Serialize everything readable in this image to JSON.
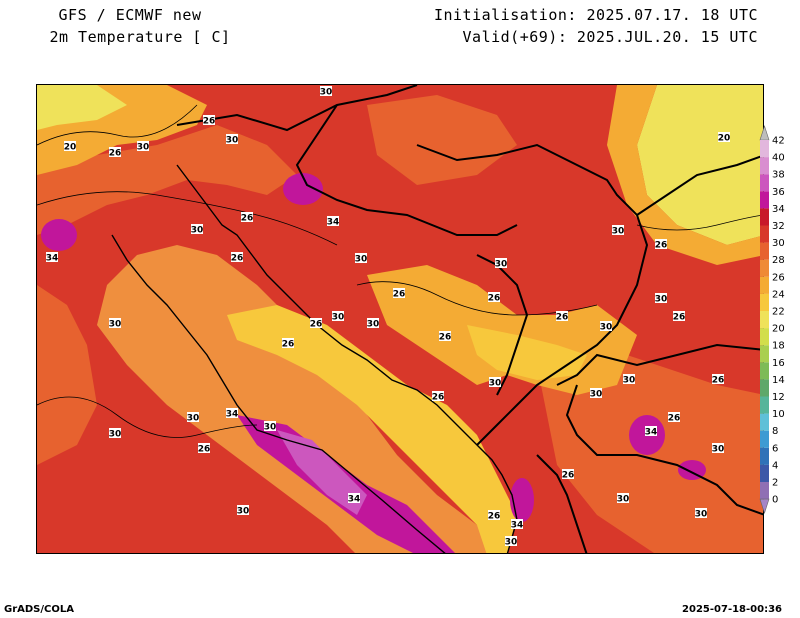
{
  "header": {
    "model": "GFS / ECMWF new",
    "field": "2m Temperature [ C]",
    "init": "Initialisation: 2025.07.17. 18 UTC",
    "valid": "Valid(+69): 2025.JUL.20. 15 UTC"
  },
  "footer": {
    "credit": "GrADS/COLA",
    "timestamp": "2025-07-18-00:36"
  },
  "colorbar": {
    "levels": [
      "0",
      "2",
      "4",
      "6",
      "8",
      "10",
      "12",
      "14",
      "16",
      "18",
      "20",
      "22",
      "24",
      "26",
      "28",
      "30",
      "32",
      "34",
      "36",
      "38",
      "40",
      "42"
    ],
    "colors": [
      "#8f6fb4",
      "#3c58a8",
      "#2f72b8",
      "#3d9bd3",
      "#5fc0d8",
      "#56b59a",
      "#5ea86a",
      "#7dbb56",
      "#a9cf4f",
      "#d2de4b",
      "#efe25a",
      "#f7c83c",
      "#f4ab34",
      "#ef8a36",
      "#e7622f",
      "#d8382a",
      "#c8192a",
      "#c1169b",
      "#cc57be",
      "#d98ed0",
      "#e2b7dd"
    ],
    "low_arrow_color": "#a585c7",
    "high_arrow_color": "#bdbdbd"
  },
  "map": {
    "sea_color": "#ef8f3e",
    "contour_labels": [
      {
        "text": "30",
        "pos": "325,90"
      },
      {
        "text": "26",
        "pos": "208,119"
      },
      {
        "text": "30",
        "pos": "231,138"
      },
      {
        "text": "20",
        "pos": "69,145"
      },
      {
        "text": "26",
        "pos": "114,151"
      },
      {
        "text": "30",
        "pos": "142,145"
      },
      {
        "text": "20",
        "pos": "723,136"
      },
      {
        "text": "26",
        "pos": "246,216"
      },
      {
        "text": "30",
        "pos": "196,228"
      },
      {
        "text": "26",
        "pos": "236,256"
      },
      {
        "text": "34",
        "pos": "332,220"
      },
      {
        "text": "30",
        "pos": "360,257"
      },
      {
        "text": "30",
        "pos": "500,262"
      },
      {
        "text": "30",
        "pos": "617,229"
      },
      {
        "text": "26",
        "pos": "660,243"
      },
      {
        "text": "34",
        "pos": "51,256"
      },
      {
        "text": "26",
        "pos": "398,292"
      },
      {
        "text": "26",
        "pos": "493,296"
      },
      {
        "text": "30",
        "pos": "660,297"
      },
      {
        "text": "30",
        "pos": "114,322"
      },
      {
        "text": "26",
        "pos": "315,322"
      },
      {
        "text": "30",
        "pos": "337,315"
      },
      {
        "text": "30",
        "pos": "372,322"
      },
      {
        "text": "26",
        "pos": "444,335"
      },
      {
        "text": "26",
        "pos": "561,315"
      },
      {
        "text": "30",
        "pos": "605,325"
      },
      {
        "text": "26",
        "pos": "678,315"
      },
      {
        "text": "26",
        "pos": "287,342"
      },
      {
        "text": "30",
        "pos": "494,381"
      },
      {
        "text": "30",
        "pos": "628,378"
      },
      {
        "text": "26",
        "pos": "717,378"
      },
      {
        "text": "26",
        "pos": "437,395"
      },
      {
        "text": "30",
        "pos": "595,392"
      },
      {
        "text": "30",
        "pos": "192,416"
      },
      {
        "text": "34",
        "pos": "231,412"
      },
      {
        "text": "30",
        "pos": "269,425"
      },
      {
        "text": "34",
        "pos": "650,430"
      },
      {
        "text": "26",
        "pos": "673,416"
      },
      {
        "text": "30",
        "pos": "114,432"
      },
      {
        "text": "26",
        "pos": "203,447"
      },
      {
        "text": "30",
        "pos": "717,447"
      },
      {
        "text": "26",
        "pos": "567,473"
      },
      {
        "text": "34",
        "pos": "353,497"
      },
      {
        "text": "30",
        "pos": "622,497"
      },
      {
        "text": "30",
        "pos": "242,509"
      },
      {
        "text": "26",
        "pos": "493,514"
      },
      {
        "text": "34",
        "pos": "516,523"
      },
      {
        "text": "30",
        "pos": "700,512"
      },
      {
        "text": "30",
        "pos": "510,540"
      }
    ]
  }
}
